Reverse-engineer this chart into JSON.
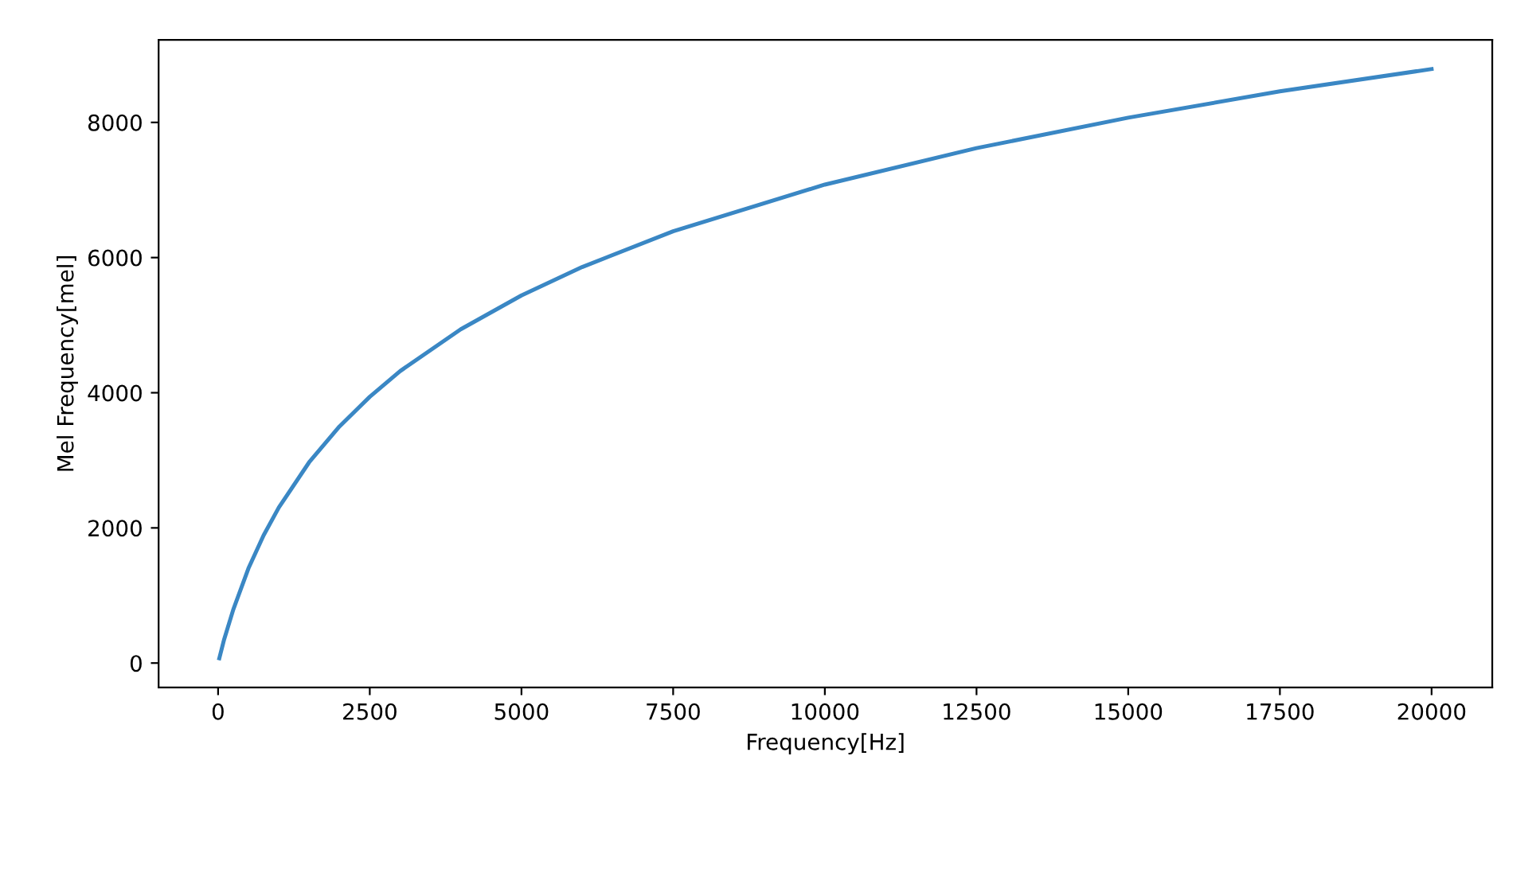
{
  "chart_data": {
    "type": "line",
    "xlabel": "Frequency[Hz]",
    "ylabel": "Mel Frequency[mel]",
    "x": [
      20,
      100,
      250,
      500,
      750,
      1000,
      1500,
      2000,
      2500,
      3000,
      4000,
      5000,
      6000,
      7500,
      10000,
      12500,
      15000,
      17500,
      20000
    ],
    "series": [
      {
        "color": "#3a87c4",
        "values": [
          70,
          350,
          790,
          1400,
          1890,
          2300,
          2970,
          3500,
          3940,
          4320,
          4940,
          5440,
          5860,
          6390,
          7080,
          7620,
          8070,
          8460,
          8790
        ]
      }
    ],
    "xlim": [
      -980,
      21000
    ],
    "ylim": [
      -360,
      9220
    ],
    "xticks": [
      0,
      2500,
      5000,
      7500,
      10000,
      12500,
      15000,
      17500,
      20000
    ],
    "yticks": [
      0,
      2000,
      4000,
      6000,
      8000
    ],
    "grid": false,
    "marker": "none",
    "line_style": "solid"
  }
}
